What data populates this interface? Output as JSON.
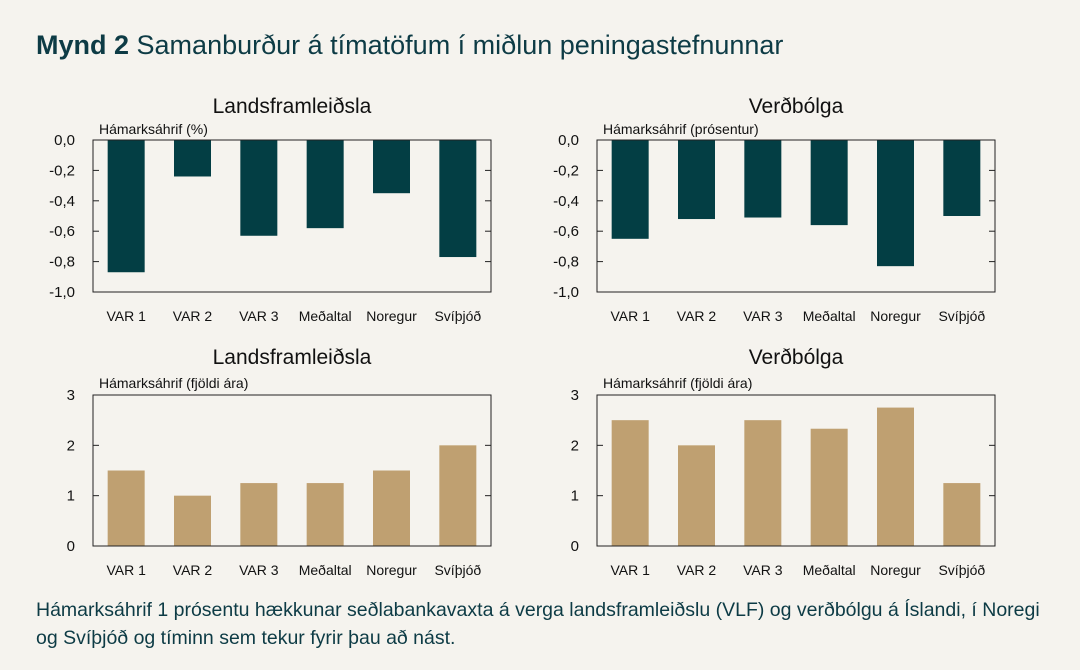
{
  "figure": {
    "label": "Mynd 2",
    "title": "Samanburður á tímatöfum í miðlun peningastefnunnar",
    "caption": "Hámarksáhrif 1 prósentu hækkunar seðlabankavaxta á verga landsframleiðslu (VLF) og verðbólgu á Íslandi, í Noregi og Svíþjóð og tíminn sem tekur fyrir þau að nást."
  },
  "colors": {
    "dark_bar": "#033e44",
    "light_bar": "#bfa071"
  },
  "chart_data": [
    {
      "type": "bar",
      "title": "Landsframleiðsla",
      "ylabel": "Hámarksáhrif (%)",
      "categories": [
        "VAR 1",
        "VAR 2",
        "VAR 3",
        "Meðaltal",
        "Noregur",
        "Svíþjóð"
      ],
      "values": [
        -0.87,
        -0.24,
        -0.63,
        -0.58,
        -0.35,
        -0.77
      ],
      "ylim": [
        -1.0,
        0.0
      ],
      "yticks": [
        "0,0",
        "-0,2",
        "-0,4",
        "-0,6",
        "-0,8",
        "-1,0"
      ],
      "ytick_values": [
        0,
        -0.2,
        -0.4,
        -0.6,
        -0.8,
        -1.0
      ],
      "color": "#033e44",
      "grid": false
    },
    {
      "type": "bar",
      "title": "Verðbólga",
      "ylabel": "Hámarksáhrif (prósentur)",
      "categories": [
        "VAR 1",
        "VAR 2",
        "VAR 3",
        "Meðaltal",
        "Noregur",
        "Svíþjóð"
      ],
      "values": [
        -0.65,
        -0.52,
        -0.51,
        -0.56,
        -0.83,
        -0.5
      ],
      "ylim": [
        -1.0,
        0.0
      ],
      "yticks": [
        "0,0",
        "-0,2",
        "-0,4",
        "-0,6",
        "-0,8",
        "-1,0"
      ],
      "ytick_values": [
        0,
        -0.2,
        -0.4,
        -0.6,
        -0.8,
        -1.0
      ],
      "color": "#033e44",
      "grid": false
    },
    {
      "type": "bar",
      "title": "Landsframleiðsla",
      "ylabel": "Hámarksáhrif (fjöldi ára)",
      "categories": [
        "VAR 1",
        "VAR 2",
        "VAR 3",
        "Meðaltal",
        "Noregur",
        "Svíþjóð"
      ],
      "values": [
        1.5,
        1.0,
        1.25,
        1.25,
        1.5,
        2.0
      ],
      "ylim": [
        0,
        3
      ],
      "yticks": [
        "3",
        "2",
        "1",
        "0"
      ],
      "ytick_values": [
        3,
        2,
        1,
        0
      ],
      "color": "#bfa071",
      "grid": false
    },
    {
      "type": "bar",
      "title": "Verðbólga",
      "ylabel": "Hámarksáhrif (fjöldi ára)",
      "categories": [
        "VAR 1",
        "VAR 2",
        "VAR 3",
        "Meðaltal",
        "Noregur",
        "Svíþjóð"
      ],
      "values": [
        2.5,
        2.0,
        2.5,
        2.33,
        2.75,
        1.25
      ],
      "ylim": [
        0,
        3
      ],
      "yticks": [
        "3",
        "2",
        "1",
        "0"
      ],
      "ytick_values": [
        3,
        2,
        1,
        0
      ],
      "color": "#bfa071",
      "grid": false
    }
  ]
}
